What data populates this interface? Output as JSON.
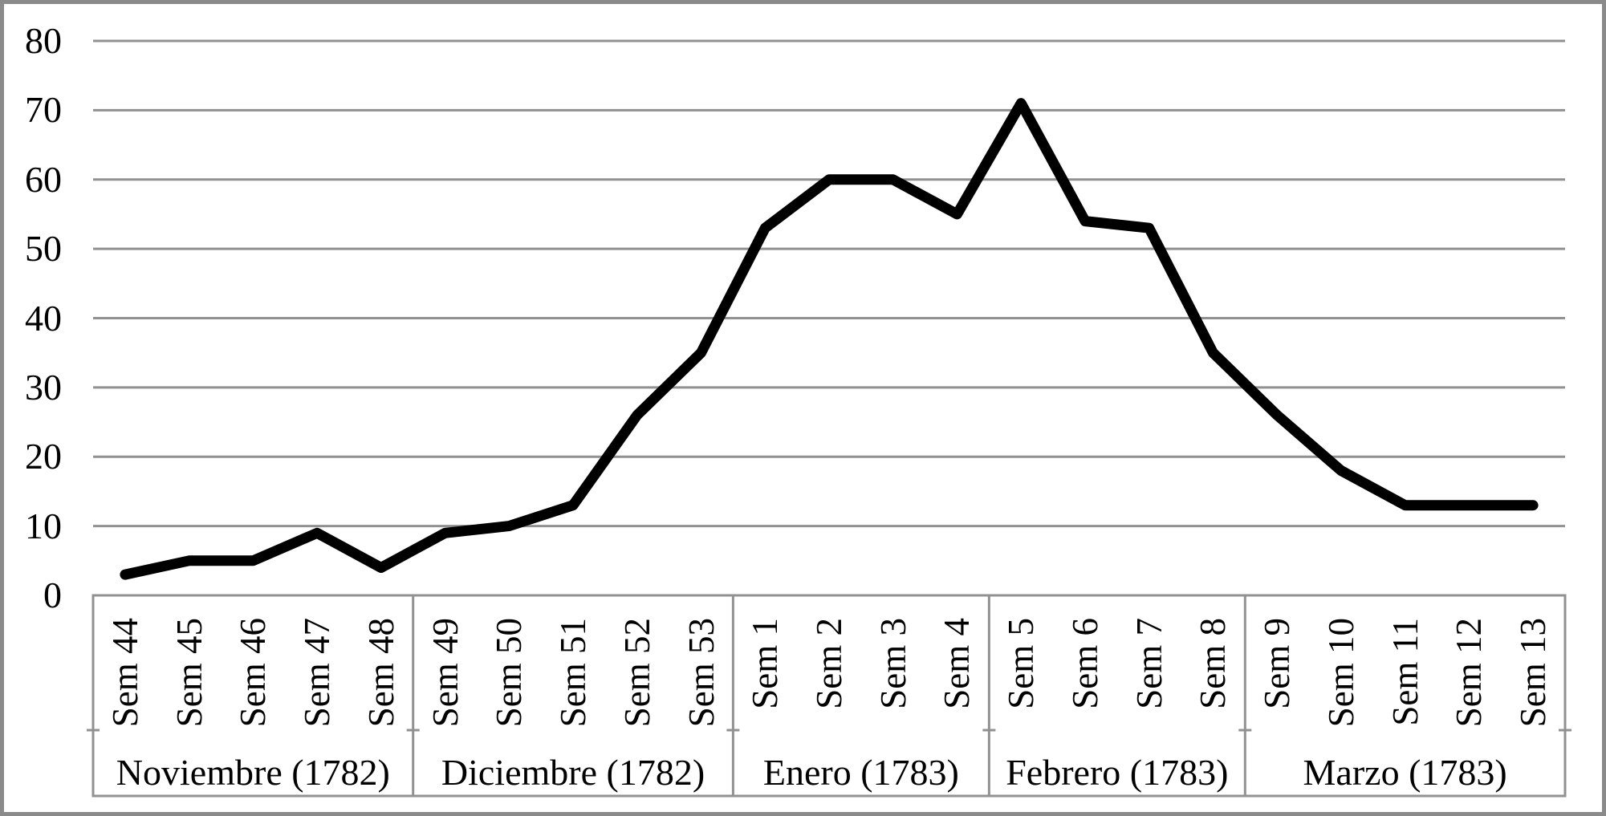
{
  "chart_data": {
    "type": "line",
    "title": "",
    "categories": [
      "Sem 44",
      "Sem 45",
      "Sem 46",
      "Sem 47",
      "Sem 48",
      "Sem 49",
      "Sem 50",
      "Sem 51",
      "Sem 52",
      "Sem 53",
      "Sem 1",
      "Sem 2",
      "Sem 3",
      "Sem 4",
      "Sem 5",
      "Sem 6",
      "Sem 7",
      "Sem 8",
      "Sem 9",
      "Sem 10",
      "Sem 11",
      "Sem 12",
      "Sem 13"
    ],
    "values": [
      3,
      5,
      5,
      9,
      4,
      9,
      10,
      13,
      26,
      35,
      53,
      60,
      60,
      55,
      71,
      54,
      53,
      35,
      26,
      18,
      13,
      13,
      13
    ],
    "month_groups": [
      {
        "label": "Noviembre (1782)",
        "weeks": 5
      },
      {
        "label": "Diciembre (1782)",
        "weeks": 5
      },
      {
        "label": "Enero (1783)",
        "weeks": 4
      },
      {
        "label": "Febrero (1783)",
        "weeks": 4
      },
      {
        "label": "Marzo (1783)",
        "weeks": 5
      }
    ],
    "xlabel": "",
    "ylabel": "",
    "ylim": [
      0,
      80
    ],
    "y_ticks": [
      0,
      10,
      20,
      30,
      40,
      50,
      60,
      70,
      80
    ],
    "grid": "horizontal",
    "legend": "none",
    "line_color": "#000000",
    "grid_color": "#919191",
    "frame_color": "#8a8a8a"
  }
}
